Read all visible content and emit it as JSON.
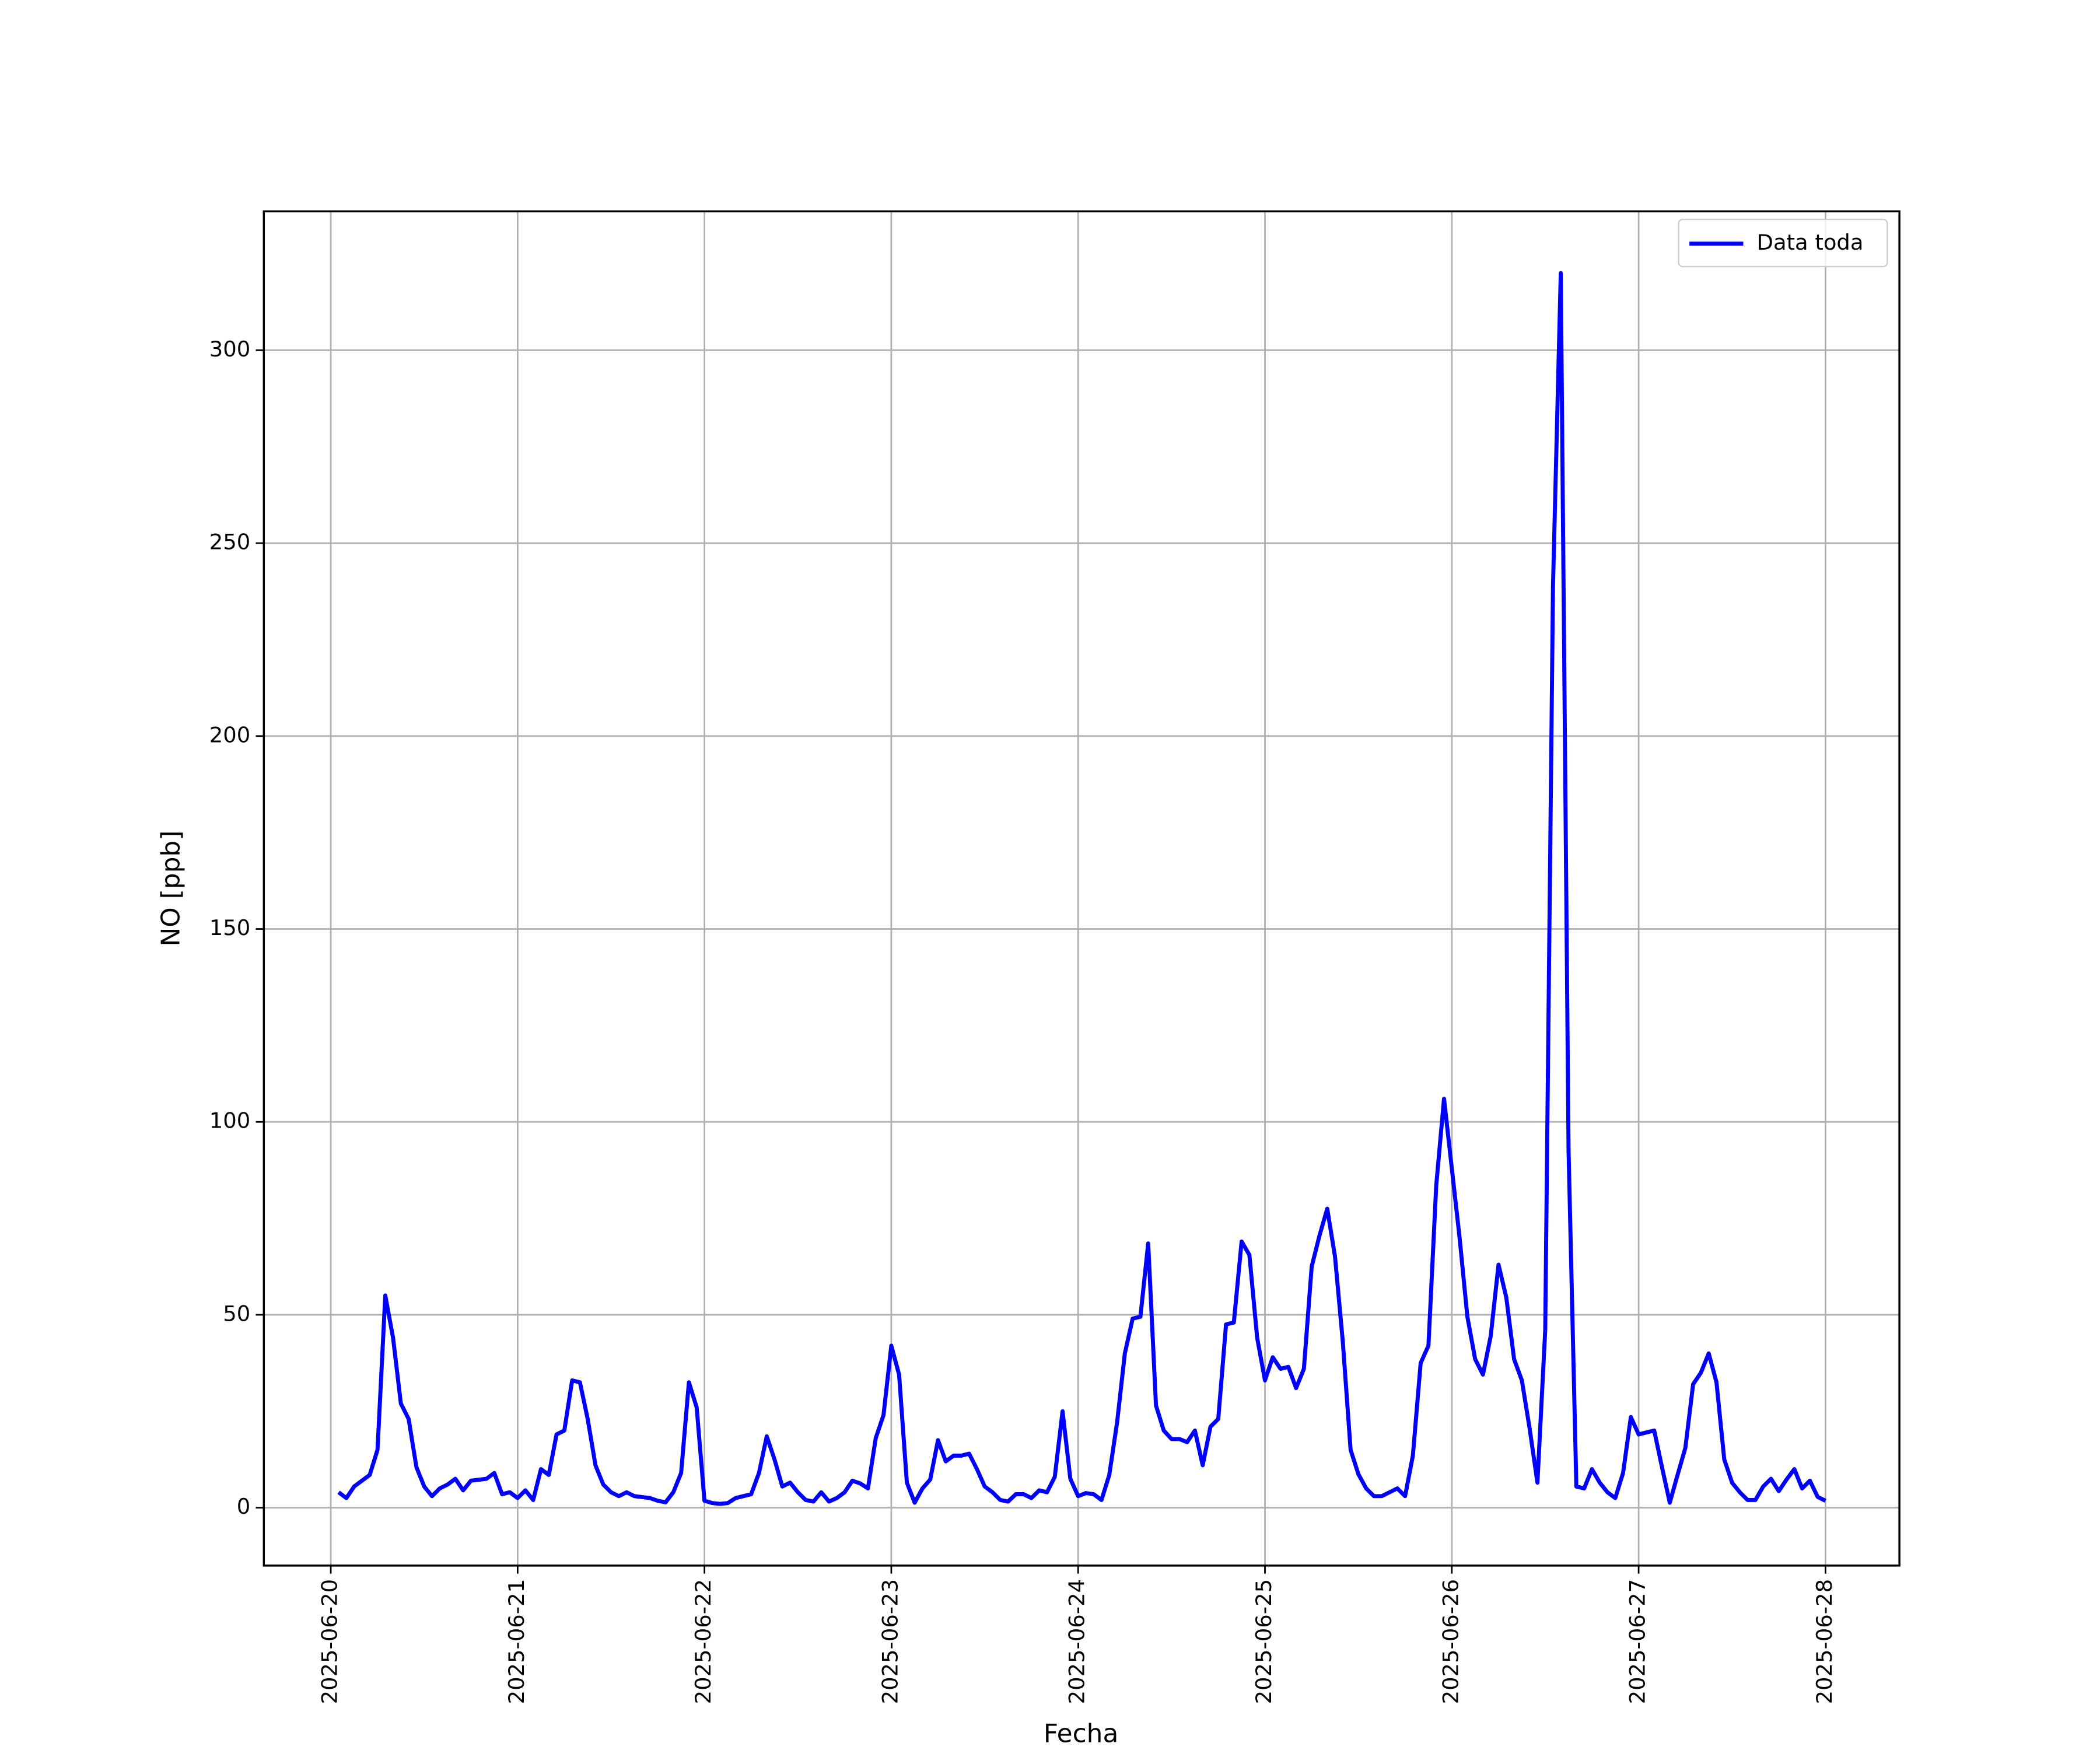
{
  "chart_data": {
    "type": "line",
    "xlabel": "Fecha",
    "ylabel": "NO [ppb]",
    "xlim": [
      "2025-06-19 15:24",
      "2025-06-28 09:30"
    ],
    "xticks": [
      "2025-06-20",
      "2025-06-21",
      "2025-06-22",
      "2025-06-23",
      "2025-06-24",
      "2025-06-25",
      "2025-06-26",
      "2025-06-27",
      "2025-06-28"
    ],
    "ylim": [
      -15,
      336
    ],
    "yticks": [
      0,
      50,
      100,
      150,
      200,
      250,
      300
    ],
    "grid": true,
    "legend": "upper right",
    "x": [
      "2025-06-20 01:00",
      "2025-06-20 02:00",
      "2025-06-20 03:00",
      "2025-06-20 05:00",
      "2025-06-20 06:00",
      "2025-06-20 07:00",
      "2025-06-20 08:00",
      "2025-06-20 09:00",
      "2025-06-20 10:00",
      "2025-06-20 11:00",
      "2025-06-20 12:00",
      "2025-06-20 13:00",
      "2025-06-20 14:00",
      "2025-06-20 15:00",
      "2025-06-20 16:00",
      "2025-06-20 17:00",
      "2025-06-20 18:00",
      "2025-06-20 20:00",
      "2025-06-20 21:00",
      "2025-06-20 22:00",
      "2025-06-20 23:00",
      "2025-06-21 00:00",
      "2025-06-21 01:00",
      "2025-06-21 02:00",
      "2025-06-21 03:00",
      "2025-06-21 04:00",
      "2025-06-21 05:00",
      "2025-06-21 06:00",
      "2025-06-21 07:00",
      "2025-06-21 08:00",
      "2025-06-21 09:00",
      "2025-06-21 10:00",
      "2025-06-21 11:00",
      "2025-06-21 12:00",
      "2025-06-21 13:00",
      "2025-06-21 14:00",
      "2025-06-21 15:00",
      "2025-06-21 17:00",
      "2025-06-21 18:00",
      "2025-06-21 19:00",
      "2025-06-21 20:00",
      "2025-06-21 21:00",
      "2025-06-21 22:00",
      "2025-06-21 23:00",
      "2025-06-22 00:00",
      "2025-06-22 01:00",
      "2025-06-22 02:00",
      "2025-06-22 03:00",
      "2025-06-22 04:00",
      "2025-06-22 06:00",
      "2025-06-22 07:00",
      "2025-06-22 08:00",
      "2025-06-22 09:00",
      "2025-06-22 10:00",
      "2025-06-22 11:00",
      "2025-06-22 12:00",
      "2025-06-22 13:00",
      "2025-06-22 14:00",
      "2025-06-22 15:00",
      "2025-06-22 16:00",
      "2025-06-22 17:00",
      "2025-06-22 18:00",
      "2025-06-22 19:00",
      "2025-06-22 20:00",
      "2025-06-22 21:00",
      "2025-06-22 22:00",
      "2025-06-22 23:00",
      "2025-06-23 00:00",
      "2025-06-23 01:00",
      "2025-06-23 02:00",
      "2025-06-23 03:00",
      "2025-06-23 04:00",
      "2025-06-23 05:00",
      "2025-06-23 06:00",
      "2025-06-23 07:00",
      "2025-06-23 08:00",
      "2025-06-23 09:00",
      "2025-06-23 10:00",
      "2025-06-23 11:00",
      "2025-06-23 12:00",
      "2025-06-23 13:00",
      "2025-06-23 14:00",
      "2025-06-23 15:00",
      "2025-06-23 16:00",
      "2025-06-23 17:00",
      "2025-06-23 18:00",
      "2025-06-23 19:00",
      "2025-06-23 20:00",
      "2025-06-23 21:00",
      "2025-06-23 22:00",
      "2025-06-23 23:00",
      "2025-06-24 00:00",
      "2025-06-24 01:00",
      "2025-06-24 02:00",
      "2025-06-24 03:00",
      "2025-06-24 04:00",
      "2025-06-24 05:00",
      "2025-06-24 06:00",
      "2025-06-24 07:00",
      "2025-06-24 08:00",
      "2025-06-24 09:00",
      "2025-06-24 10:00",
      "2025-06-24 11:00",
      "2025-06-24 12:00",
      "2025-06-24 13:00",
      "2025-06-24 14:00",
      "2025-06-24 15:00",
      "2025-06-24 16:00",
      "2025-06-24 17:00",
      "2025-06-24 18:00",
      "2025-06-24 19:00",
      "2025-06-24 20:00",
      "2025-06-24 21:00",
      "2025-06-24 22:00",
      "2025-06-24 23:00",
      "2025-06-25 00:00",
      "2025-06-25 01:00",
      "2025-06-25 02:00",
      "2025-06-25 03:00",
      "2025-06-25 04:00",
      "2025-06-25 05:00",
      "2025-06-25 06:00",
      "2025-06-25 07:00",
      "2025-06-25 08:00",
      "2025-06-25 09:00",
      "2025-06-25 10:00",
      "2025-06-25 11:00",
      "2025-06-25 12:00",
      "2025-06-25 13:00",
      "2025-06-25 14:00",
      "2025-06-25 15:00",
      "2025-06-25 16:00",
      "2025-06-25 17:00",
      "2025-06-25 18:00",
      "2025-06-25 19:00",
      "2025-06-25 20:00",
      "2025-06-25 21:00",
      "2025-06-25 22:00",
      "2025-06-25 23:00",
      "2025-06-26 00:00",
      "2025-06-26 01:00",
      "2025-06-26 02:00",
      "2025-06-26 03:00",
      "2025-06-26 04:00",
      "2025-06-26 05:00",
      "2025-06-26 06:00",
      "2025-06-26 07:00",
      "2025-06-26 08:00",
      "2025-06-26 09:00",
      "2025-06-26 10:00",
      "2025-06-26 11:00",
      "2025-06-26 12:00",
      "2025-06-26 13:00",
      "2025-06-26 14:00",
      "2025-06-26 15:00",
      "2025-06-26 16:00",
      "2025-06-26 17:00",
      "2025-06-26 18:00",
      "2025-06-26 19:00",
      "2025-06-26 20:00",
      "2025-06-26 21:00",
      "2025-06-26 22:00",
      "2025-06-26 23:00",
      "2025-06-27 00:00",
      "2025-06-27 01:00",
      "2025-06-27 02:00",
      "2025-06-27 03:00",
      "2025-06-27 04:00",
      "2025-06-27 05:00",
      "2025-06-27 06:00",
      "2025-06-27 07:00",
      "2025-06-27 08:00",
      "2025-06-27 09:00",
      "2025-06-27 10:00",
      "2025-06-27 11:00",
      "2025-06-27 12:00",
      "2025-06-27 13:00",
      "2025-06-27 14:00",
      "2025-06-27 15:00",
      "2025-06-27 16:00",
      "2025-06-27 17:00",
      "2025-06-27 18:00",
      "2025-06-27 19:00",
      "2025-06-27 20:00",
      "2025-06-27 21:00",
      "2025-06-27 22:00",
      "2025-06-27 23:00",
      "2025-06-28 00:00"
    ],
    "series": [
      {
        "name": "Data toda",
        "color": "#0000ff",
        "values": [
          4,
          2.5,
          5.5,
          8.5,
          15,
          55,
          44,
          27,
          23,
          10.5,
          5.5,
          3,
          5,
          6,
          7.5,
          4.5,
          7,
          7.5,
          9,
          3.5,
          4,
          2.5,
          4.5,
          2,
          10,
          8.5,
          19,
          20,
          33,
          32.5,
          23,
          11,
          6,
          4,
          3,
          4,
          3,
          2.5,
          1.8,
          1.4,
          4,
          9,
          32.5,
          26,
          1.8,
          1.2,
          1,
          1.2,
          2.5,
          3.5,
          9,
          18.5,
          12.5,
          5.5,
          6.5,
          4,
          2,
          1.6,
          4,
          1.6,
          2.5,
          4,
          7,
          6.3,
          5,
          18,
          24,
          42,
          34.5,
          6.5,
          1.3,
          5,
          7.3,
          17.5,
          12,
          13.5,
          13.5,
          14,
          10,
          5.5,
          4,
          2,
          1.6,
          3.5,
          3.5,
          2.5,
          4.5,
          4,
          8,
          25,
          7.5,
          3,
          3.8,
          3.5,
          2,
          8.5,
          22,
          40,
          49,
          49.5,
          68.5,
          26.5,
          20,
          17.8,
          17.8,
          17,
          20,
          11,
          21,
          23,
          47.5,
          48,
          69,
          65.5,
          44,
          33,
          39,
          36,
          36.5,
          31,
          36,
          62.5,
          70.5,
          77.5,
          65,
          43,
          15,
          8.7,
          5,
          3,
          3,
          4,
          5,
          3,
          13.5,
          37.5,
          42,
          83.5,
          106,
          88,
          70,
          49.5,
          38.5,
          34.5,
          44.5,
          63,
          54.5,
          38.5,
          33,
          20.5,
          6.5,
          46,
          239,
          320,
          92.5,
          5.5,
          5,
          10,
          6.5,
          4,
          2.5,
          9,
          23.5,
          19,
          19.5,
          20,
          10.5,
          1.3,
          8.5,
          15.5,
          32,
          35,
          40,
          32.5,
          12.5,
          6.5,
          4,
          2,
          2,
          5.5,
          7.5,
          4.3,
          7.3,
          10,
          5,
          7,
          2.8,
          1.8
        ]
      }
    ]
  }
}
